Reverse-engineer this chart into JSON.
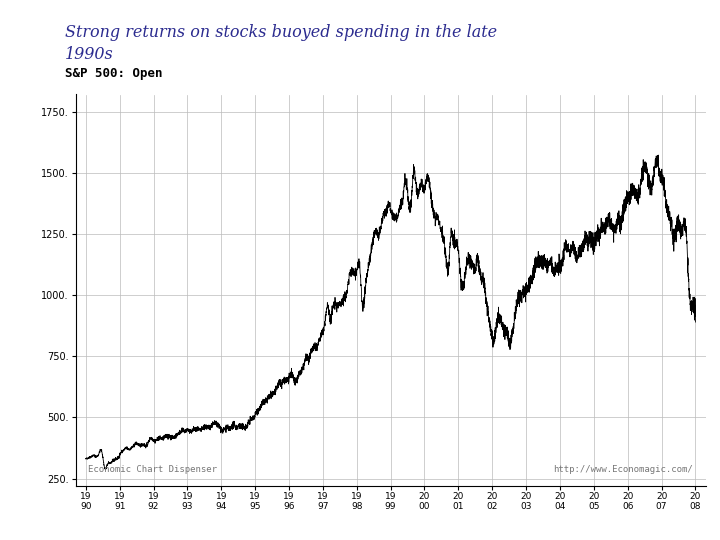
{
  "title_line1": "Strong returns on stocks buoyed spending in the late",
  "title_line2": "1990s",
  "subtitle": "S&P 500: Open",
  "title_color": "#2b2b8f",
  "subtitle_color": "#000000",
  "title_fontsize": 11.5,
  "subtitle_fontsize": 9,
  "line_color": "#000000",
  "line_width": 0.6,
  "background_color": "#ffffff",
  "plot_bg_color": "#ffffff",
  "grid_color": "#bbbbbb",
  "yticks": [
    250,
    500,
    750,
    1000,
    1250,
    1500,
    1750
  ],
  "xtick_labels": [
    "19\n90",
    "19\n91",
    "19\n92",
    "19\n93",
    "19\n94",
    "19\n95",
    "19\n96",
    "19\n97",
    "19\n98",
    "19\n99",
    "20\n00",
    "20\n01",
    "20\n02",
    "20\n03",
    "20\n04",
    "20\n05",
    "20\n06",
    "20\n07",
    "20\n08"
  ],
  "watermark1": "Economic Chart Dispenser",
  "watermark2": "http://www.Economagic.com/",
  "ylim": [
    220,
    1820
  ],
  "xlim": [
    -0.3,
    18.3
  ]
}
